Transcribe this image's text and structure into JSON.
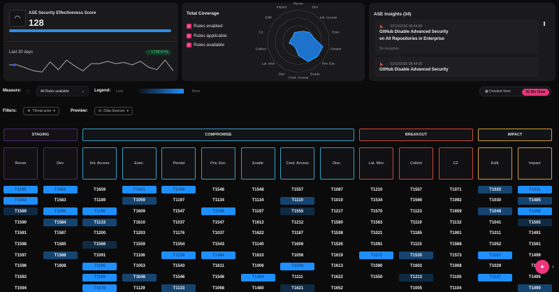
{
  "score_panel": {
    "title": "ASE Security Effectiveness Score",
    "score": "128",
    "period": "Last 30 days",
    "delta": "↑ 1728.57%",
    "sparkline": [
      50,
      50,
      45,
      40,
      38,
      55,
      42,
      58,
      48,
      40,
      52,
      52,
      56,
      52,
      54,
      50,
      56,
      46,
      42,
      58,
      40
    ]
  },
  "coverage": {
    "title": "Total Coverage",
    "checks": [
      "Rules enabled",
      "Rules applicable",
      "Rules available"
    ],
    "radar_labels": [
      "Recon",
      "Dev",
      "Init. Access",
      "Exec",
      "Persist",
      "Priv. Esc",
      "Evade",
      "Cred. Access",
      "Disc",
      "Lat. Mov",
      "Collect",
      "C2",
      "Exfil",
      "Impact"
    ],
    "radar_values": [
      0.3,
      0.35,
      0.45,
      0.5,
      0.8,
      0.78,
      0.72,
      0.45,
      0.22,
      0.2,
      0.3,
      0.25,
      0.22,
      0.3
    ]
  },
  "insights": {
    "title": "ASE Insights (34)",
    "items": [
      {
        "time": "02/10/2026 08:44:38",
        "title_1": "GitHub Disable Advanced Security",
        "title_2": "on All Repositories in Enterprise",
        "assignee": "No Assignee"
      },
      {
        "time": "02/10/2026 08:44:36",
        "title_1": "GitHub Disable Advanced Security"
      }
    ]
  },
  "controls": {
    "measure_label": "Measure:",
    "measure_value": "All Rules available",
    "legend_label": "Legend:",
    "less": "Less",
    "more": "More",
    "filters_label": "Filters:",
    "filter_threat": "Threat actor",
    "preview_label": "Preview:",
    "preview_value": "Data Sources",
    "detailed_view": "Detailed View",
    "ids_view": "IDs View",
    "ids_icon": "01"
  },
  "colors": {
    "staging": "#4a2a6e",
    "compromise": "#3aa0c8",
    "breakout": "#d2473a",
    "impact": "#d4a03a",
    "accent": "#e8337a",
    "blue": "#1e8fff"
  },
  "stages": [
    {
      "label": "STAGING",
      "key": "staging",
      "span": [
        0,
        1
      ]
    },
    {
      "label": "COMPROMISE",
      "key": "compromise",
      "span": [
        2,
        8
      ]
    },
    {
      "label": "BREAKOUT",
      "key": "breakout",
      "span": [
        9,
        11
      ]
    },
    {
      "label": "IMPACT",
      "key": "impact",
      "span": [
        12,
        13
      ]
    }
  ],
  "tactics": [
    {
      "name": "Recon",
      "stage": "staging",
      "ids": [
        [
          "T1595",
          3
        ],
        [
          "T1592",
          3
        ],
        [
          "T1589",
          1
        ],
        [
          "T1590",
          0
        ],
        [
          "T1591",
          0
        ],
        [
          "T1598",
          0
        ],
        [
          "T1597",
          0
        ],
        [
          "T1596",
          0
        ],
        [
          "T1593",
          0
        ],
        [
          "T1594",
          0
        ]
      ]
    },
    {
      "name": "Dev",
      "stage": "staging",
      "ids": [
        [
          "T1650",
          3
        ],
        [
          "T1583",
          0
        ],
        [
          "T1586",
          3
        ],
        [
          "T1584",
          2
        ],
        [
          "T1587",
          0
        ],
        [
          "T1585",
          0
        ],
        [
          "T1588",
          2
        ],
        [
          "T1608",
          0
        ]
      ]
    },
    {
      "name": "Init. Access",
      "stage": "compromise",
      "ids": [
        [
          "T1659",
          0
        ],
        [
          "T1189",
          0
        ],
        [
          "T1190",
          3
        ],
        [
          "T1133",
          2
        ],
        [
          "T1200",
          0
        ],
        [
          "T1566",
          1
        ],
        [
          "T1091",
          0
        ],
        [
          "T1195",
          3
        ],
        [
          "T1199",
          3
        ],
        [
          "T1078",
          3
        ]
      ]
    },
    {
      "name": "Exec.",
      "stage": "compromise",
      "ids": [
        [
          "T1651",
          3
        ],
        [
          "T1059",
          2
        ],
        [
          "T1609",
          0
        ],
        [
          "T1610",
          0
        ],
        [
          "T1203",
          0
        ],
        [
          "T1559",
          0
        ],
        [
          "T1106",
          0
        ],
        [
          "T1053",
          0
        ],
        [
          "T1648",
          2
        ],
        [
          "T1129",
          0
        ]
      ]
    },
    {
      "name": "Persist",
      "stage": "compromise",
      "ids": [
        [
          "T1098",
          3
        ],
        [
          "T1197",
          0
        ],
        [
          "T1547",
          0
        ],
        [
          "T1037",
          0
        ],
        [
          "T1176",
          0
        ],
        [
          "T1554",
          0
        ],
        [
          "T1136",
          3
        ],
        [
          "T1543",
          0
        ],
        [
          "T1546",
          0
        ],
        [
          "T1133",
          2
        ]
      ]
    },
    {
      "name": "Priv. Esc.",
      "stage": "compromise",
      "ids": [
        [
          "T1548",
          0
        ],
        [
          "T1134",
          0
        ],
        [
          "T1098",
          3
        ],
        [
          "T1547",
          0
        ],
        [
          "T1037",
          0
        ],
        [
          "T1543",
          0
        ],
        [
          "T1484",
          3
        ],
        [
          "T1611",
          0
        ],
        [
          "T1546",
          0
        ],
        [
          "T1068",
          0
        ]
      ]
    },
    {
      "name": "Evade",
      "stage": "compromise",
      "ids": [
        [
          "T1548",
          0
        ],
        [
          "T1134",
          0
        ],
        [
          "T1197",
          0
        ],
        [
          "T1612",
          0
        ],
        [
          "T1622",
          0
        ],
        [
          "T1140",
          0
        ],
        [
          "T1610",
          0
        ],
        [
          "T1006",
          0
        ],
        [
          "T1484",
          3
        ],
        [
          "T1480",
          0
        ]
      ]
    },
    {
      "name": "Cred. Access",
      "stage": "compromise",
      "ids": [
        [
          "T1557",
          0
        ],
        [
          "T1110",
          2
        ],
        [
          "T1555",
          1
        ],
        [
          "T1212",
          0
        ],
        [
          "T1187",
          0
        ],
        [
          "T1606",
          0
        ],
        [
          "T1056",
          0
        ],
        [
          "T1556",
          3
        ],
        [
          "T1111",
          0
        ],
        [
          "T1621",
          1
        ]
      ]
    },
    {
      "name": "Disc.",
      "stage": "compromise",
      "ids": [
        [
          "T1087",
          0
        ],
        [
          "T1010",
          0
        ],
        [
          "T1217",
          0
        ],
        [
          "T1580",
          0
        ],
        [
          "T1538",
          0
        ],
        [
          "T1526",
          0
        ],
        [
          "T1619",
          0
        ],
        [
          "T1613",
          0
        ],
        [
          "T1622",
          0
        ],
        [
          "T1652",
          0
        ]
      ]
    },
    {
      "name": "Lat. Mov.",
      "stage": "breakout",
      "ids": [
        [
          "T1210",
          0
        ],
        [
          "T1534",
          0
        ],
        [
          "T1570",
          0
        ],
        [
          "T1563",
          0
        ],
        [
          "T1021",
          0
        ],
        [
          "T1091",
          0
        ],
        [
          "T1072",
          3
        ],
        [
          "T1080",
          0
        ],
        [
          "T1550",
          0
        ]
      ]
    },
    {
      "name": "Collect",
      "stage": "breakout",
      "ids": [
        [
          "T1557",
          0
        ],
        [
          "T1560",
          0
        ],
        [
          "T1123",
          0
        ],
        [
          "T1119",
          0
        ],
        [
          "T1185",
          0
        ],
        [
          "T1115",
          0
        ],
        [
          "T1530",
          2
        ],
        [
          "T1602",
          0
        ],
        [
          "T1213",
          1
        ],
        [
          "T1005",
          0
        ]
      ]
    },
    {
      "name": "C2",
      "stage": "breakout",
      "ids": [
        [
          "T1071",
          0
        ],
        [
          "T1092",
          0
        ],
        [
          "T1659",
          0
        ],
        [
          "T1132",
          0
        ],
        [
          "T1001",
          0
        ],
        [
          "T1568",
          0
        ],
        [
          "T1573",
          0
        ],
        [
          "T1008",
          0
        ],
        [
          "T1105",
          0
        ],
        [
          "T1104",
          0
        ]
      ]
    },
    {
      "name": "Exfil.",
      "stage": "impact",
      "ids": [
        [
          "T1020",
          2
        ],
        [
          "T1030",
          0
        ],
        [
          "T1048",
          2
        ],
        [
          "T1041",
          0
        ],
        [
          "T1011",
          0
        ],
        [
          "T1052",
          0
        ],
        [
          "T1567",
          3
        ],
        [
          "T1029",
          0
        ],
        [
          "T1537",
          3
        ]
      ]
    },
    {
      "name": "Impact",
      "stage": "impact",
      "ids": [
        [
          "T1531",
          3
        ],
        [
          "T1485",
          2
        ],
        [
          "T1486",
          3
        ],
        [
          "T1565",
          1
        ],
        [
          "T1491",
          0
        ],
        [
          "T1561",
          0
        ],
        [
          "T1499",
          0
        ],
        [
          "T16",
          0
        ],
        [
          "T1495",
          0
        ],
        [
          "T1490",
          2
        ]
      ]
    }
  ]
}
